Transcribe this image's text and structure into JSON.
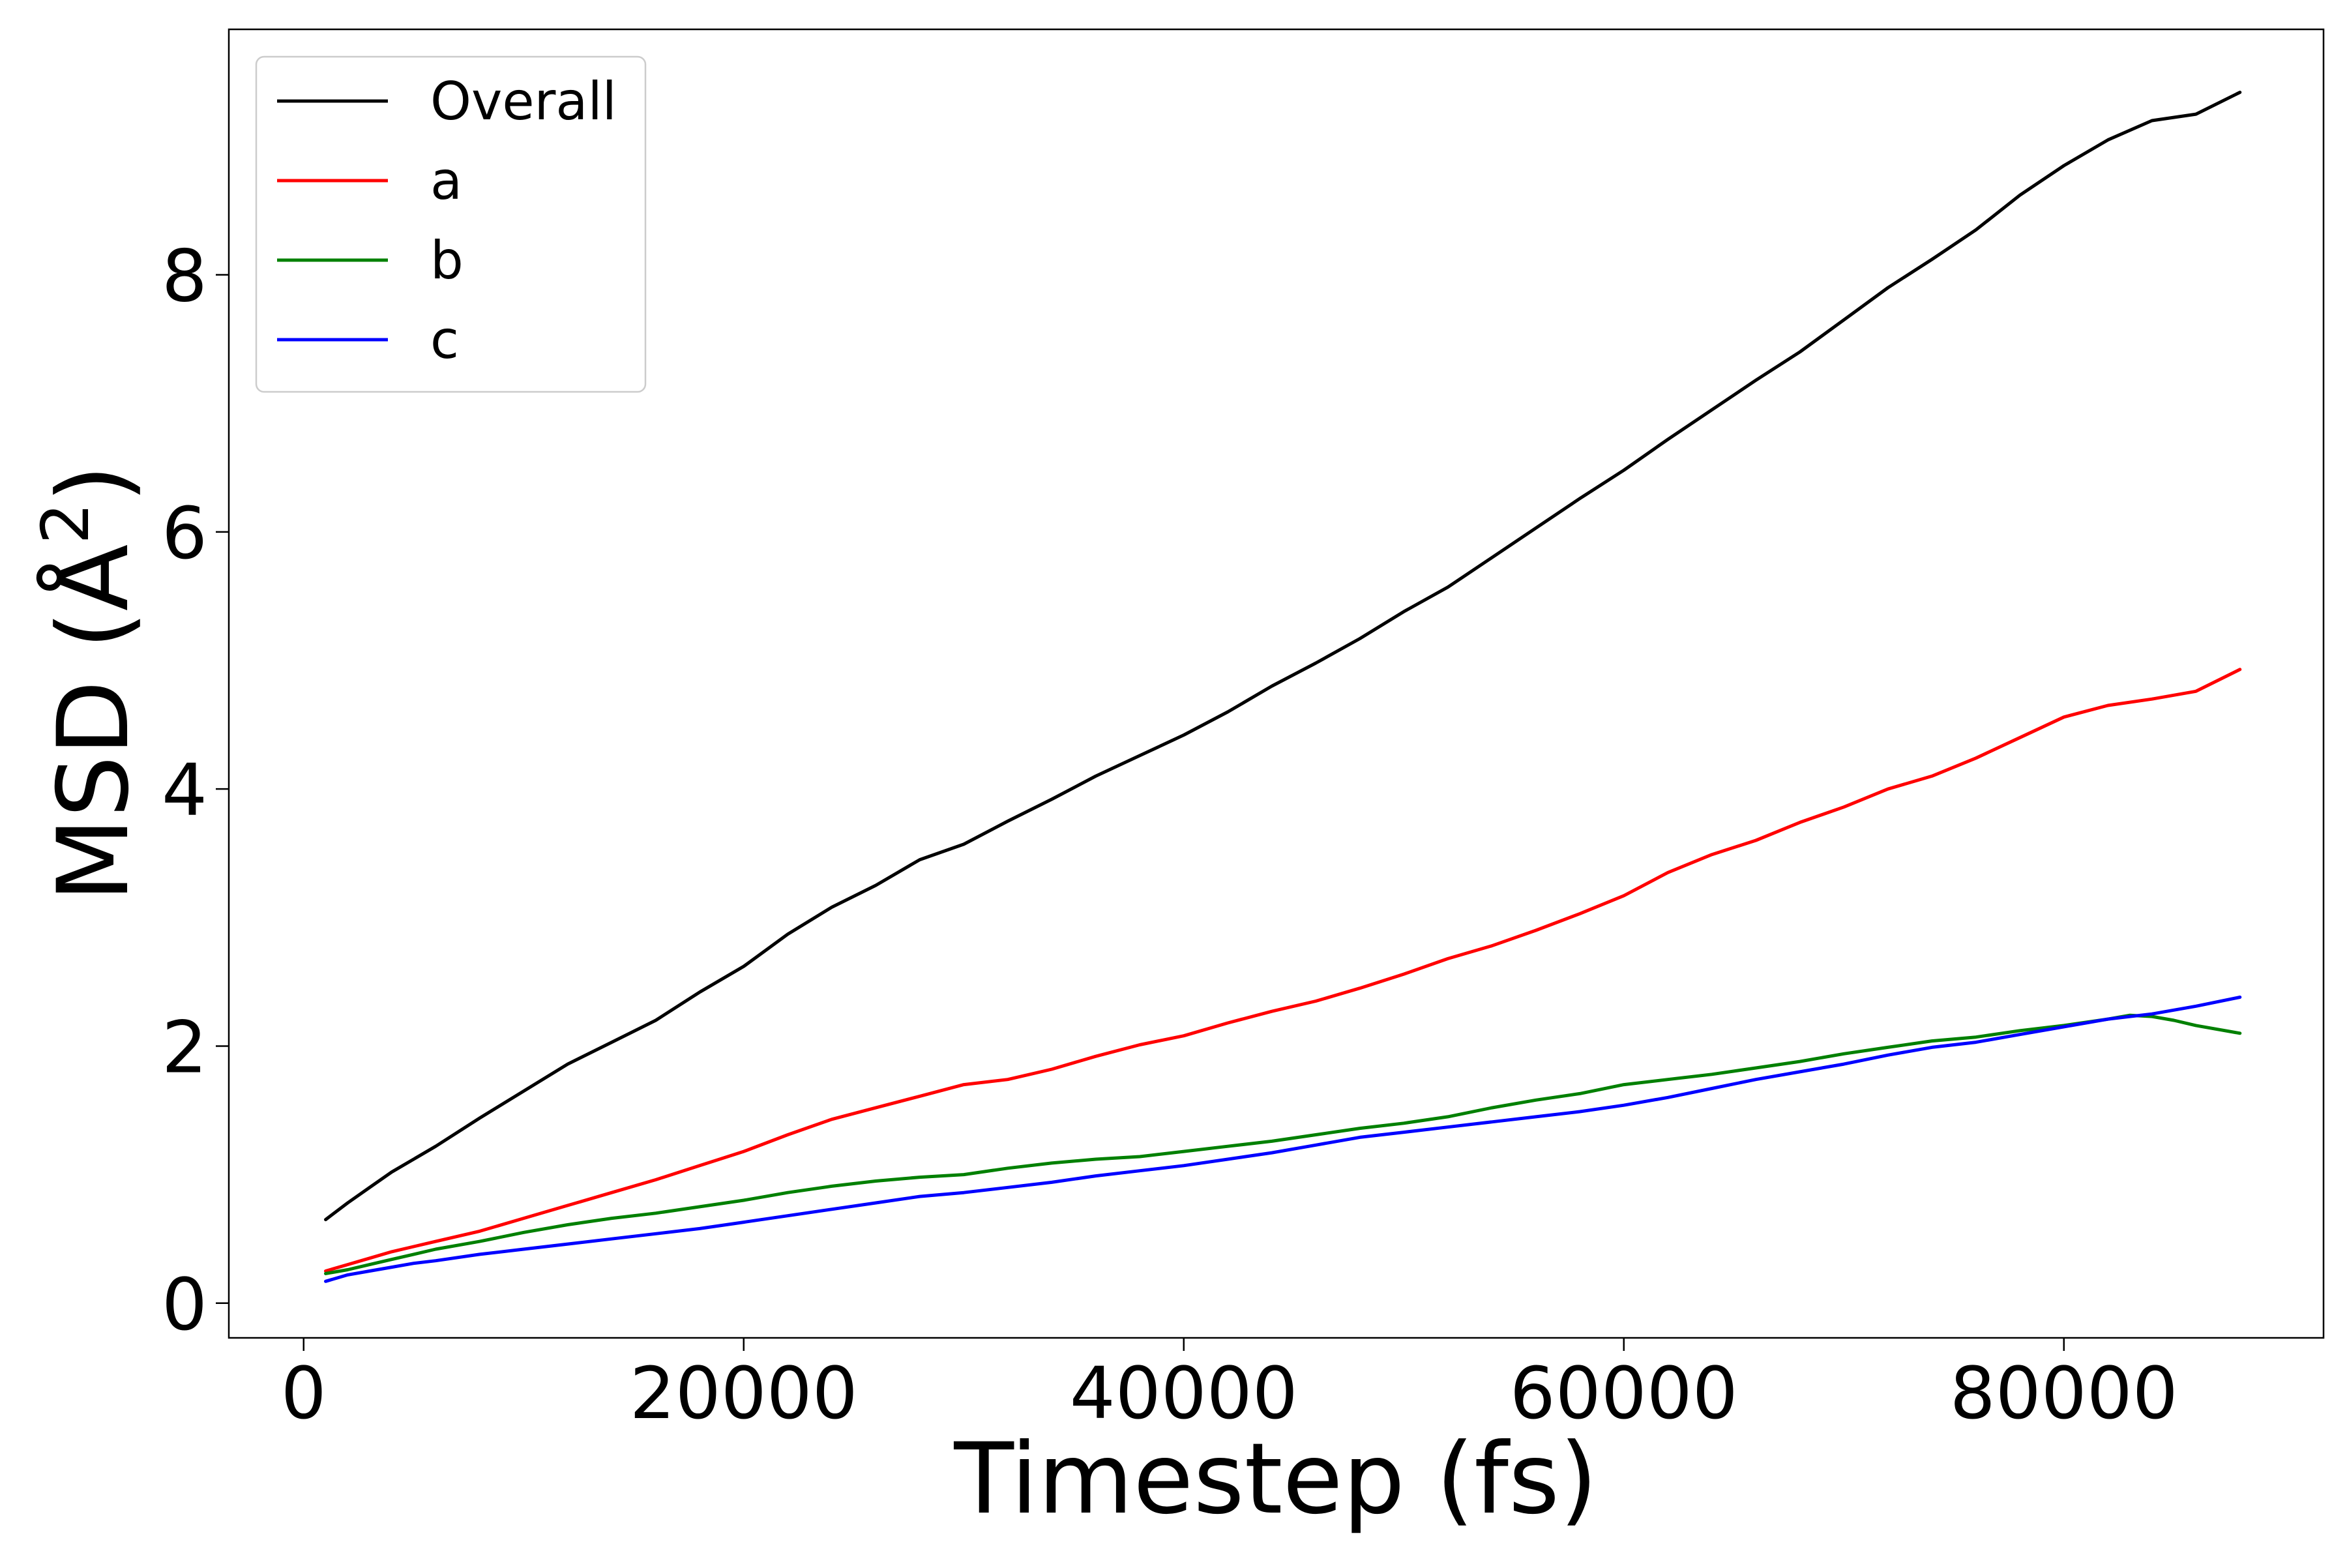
{
  "chart_data": {
    "type": "line",
    "xlabel": "Timestep (fs)",
    "ylabel": "MSD (Å²)",
    "xlim": [
      -3400,
      91800
    ],
    "ylim": [
      -0.27,
      9.91
    ],
    "x_ticks": [
      0,
      20000,
      40000,
      60000,
      80000
    ],
    "y_ticks": [
      0,
      2,
      4,
      6,
      8
    ],
    "grid": false,
    "legend_placement": "top-left",
    "series": [
      {
        "name": "Overall",
        "color": "#000000",
        "x": [
          1000,
          2000,
          3000,
          4000,
          5000,
          6000,
          8000,
          10000,
          12000,
          14000,
          16000,
          18000,
          20000,
          22000,
          24000,
          26000,
          28000,
          30000,
          32000,
          34000,
          36000,
          38000,
          40000,
          42000,
          44000,
          46000,
          48000,
          50000,
          52000,
          54000,
          56000,
          58000,
          60000,
          62000,
          64000,
          66000,
          68000,
          70000,
          72000,
          74000,
          76000,
          78000,
          80000,
          82000,
          84000,
          86000,
          88000
        ],
        "values": [
          0.65,
          0.78,
          0.9,
          1.02,
          1.12,
          1.22,
          1.44,
          1.65,
          1.86,
          2.03,
          2.2,
          2.42,
          2.62,
          2.87,
          3.08,
          3.25,
          3.45,
          3.57,
          3.75,
          3.92,
          4.1,
          4.26,
          4.42,
          4.6,
          4.8,
          4.98,
          5.17,
          5.38,
          5.57,
          5.8,
          6.03,
          6.26,
          6.48,
          6.72,
          6.95,
          7.18,
          7.4,
          7.65,
          7.9,
          8.12,
          8.35,
          8.62,
          8.85,
          9.05,
          9.2,
          9.25,
          9.42
        ]
      },
      {
        "name": "a",
        "color": "#ff0000",
        "x": [
          1000,
          2000,
          3000,
          4000,
          5000,
          6000,
          8000,
          10000,
          12000,
          14000,
          16000,
          18000,
          20000,
          22000,
          24000,
          26000,
          28000,
          30000,
          32000,
          34000,
          36000,
          38000,
          40000,
          42000,
          44000,
          46000,
          48000,
          50000,
          52000,
          54000,
          56000,
          58000,
          60000,
          62000,
          64000,
          66000,
          68000,
          70000,
          72000,
          74000,
          76000,
          78000,
          80000,
          82000,
          84000,
          86000,
          88000
        ],
        "values": [
          0.25,
          0.3,
          0.35,
          0.4,
          0.44,
          0.48,
          0.56,
          0.66,
          0.76,
          0.86,
          0.96,
          1.07,
          1.18,
          1.31,
          1.43,
          1.52,
          1.61,
          1.7,
          1.74,
          1.82,
          1.92,
          2.01,
          2.08,
          2.18,
          2.27,
          2.35,
          2.45,
          2.56,
          2.68,
          2.78,
          2.9,
          3.03,
          3.17,
          3.35,
          3.49,
          3.6,
          3.74,
          3.86,
          4.0,
          4.1,
          4.24,
          4.4,
          4.56,
          4.65,
          4.7,
          4.76,
          4.93
        ]
      },
      {
        "name": "b",
        "color": "#008000",
        "x": [
          1000,
          2000,
          3000,
          4000,
          5000,
          6000,
          8000,
          10000,
          12000,
          14000,
          16000,
          18000,
          20000,
          22000,
          24000,
          26000,
          28000,
          30000,
          32000,
          34000,
          36000,
          38000,
          40000,
          42000,
          44000,
          46000,
          48000,
          50000,
          52000,
          54000,
          56000,
          58000,
          60000,
          62000,
          64000,
          66000,
          68000,
          70000,
          72000,
          74000,
          76000,
          78000,
          80000,
          82000,
          83000,
          84000,
          85000,
          86000,
          88000
        ],
        "values": [
          0.23,
          0.26,
          0.3,
          0.34,
          0.38,
          0.42,
          0.48,
          0.55,
          0.61,
          0.66,
          0.7,
          0.75,
          0.8,
          0.86,
          0.91,
          0.95,
          0.98,
          1.0,
          1.05,
          1.09,
          1.12,
          1.14,
          1.18,
          1.22,
          1.26,
          1.31,
          1.36,
          1.4,
          1.45,
          1.52,
          1.58,
          1.63,
          1.7,
          1.74,
          1.78,
          1.83,
          1.88,
          1.94,
          1.99,
          2.04,
          2.07,
          2.12,
          2.16,
          2.21,
          2.24,
          2.23,
          2.2,
          2.16,
          2.1
        ]
      },
      {
        "name": "c",
        "color": "#0000ff",
        "x": [
          1000,
          2000,
          3000,
          4000,
          5000,
          6000,
          8000,
          10000,
          12000,
          14000,
          16000,
          18000,
          20000,
          22000,
          24000,
          26000,
          28000,
          30000,
          32000,
          34000,
          36000,
          38000,
          40000,
          42000,
          44000,
          46000,
          48000,
          50000,
          52000,
          54000,
          56000,
          58000,
          60000,
          62000,
          64000,
          66000,
          68000,
          70000,
          72000,
          74000,
          76000,
          78000,
          80000,
          82000,
          84000,
          86000,
          88000
        ],
        "values": [
          0.17,
          0.22,
          0.25,
          0.28,
          0.31,
          0.33,
          0.38,
          0.42,
          0.46,
          0.5,
          0.54,
          0.58,
          0.63,
          0.68,
          0.73,
          0.78,
          0.83,
          0.86,
          0.9,
          0.94,
          0.99,
          1.03,
          1.07,
          1.12,
          1.17,
          1.23,
          1.29,
          1.33,
          1.37,
          1.41,
          1.45,
          1.49,
          1.54,
          1.6,
          1.67,
          1.74,
          1.8,
          1.86,
          1.93,
          1.99,
          2.03,
          2.09,
          2.15,
          2.21,
          2.25,
          2.31,
          2.38
        ]
      }
    ]
  }
}
